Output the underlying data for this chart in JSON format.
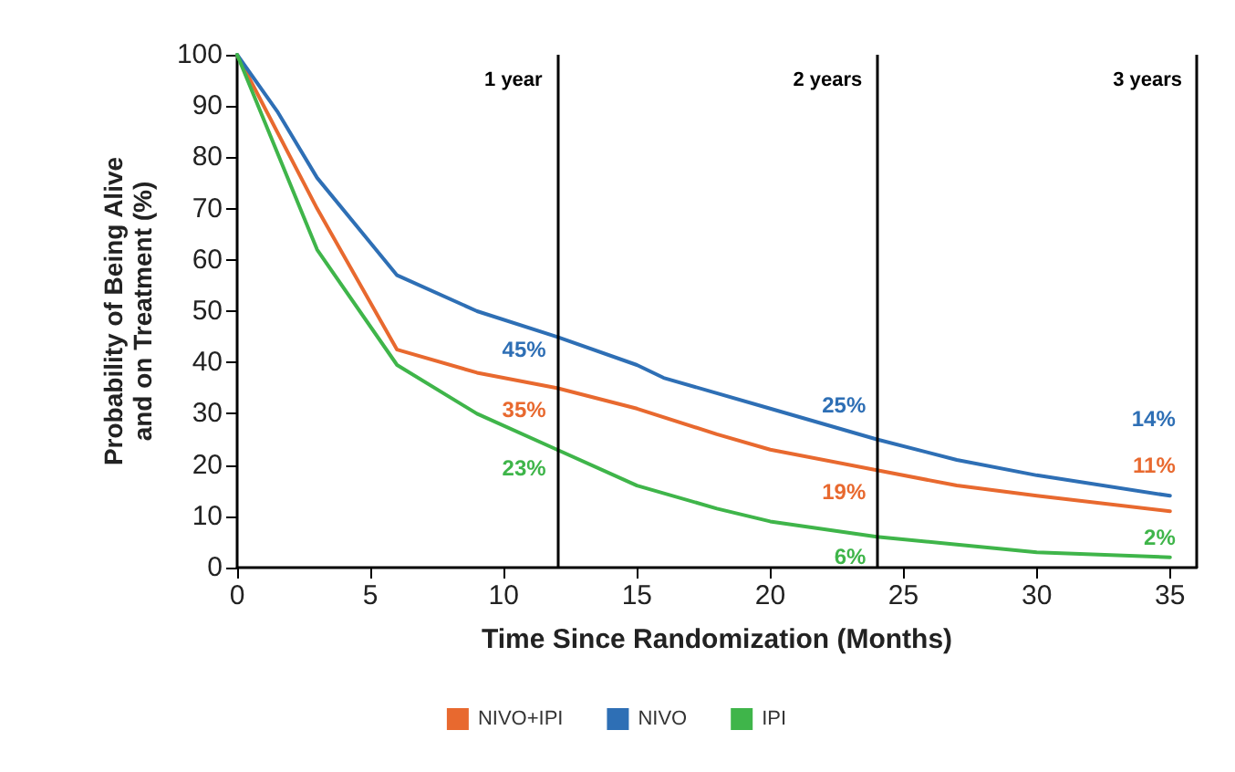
{
  "chart_data": {
    "type": "line",
    "xlabel": "Time Since Randomization (Months)",
    "ylabel": "Probability of Being Alive\nand on Treatment (%)",
    "xlim": [
      0,
      36
    ],
    "xticks": [
      0,
      5,
      10,
      15,
      20,
      25,
      30,
      35
    ],
    "ylim": [
      0,
      100
    ],
    "yticks": [
      0,
      10,
      20,
      30,
      40,
      50,
      60,
      70,
      80,
      90,
      100
    ],
    "grid": false,
    "legend": "bottom",
    "marker": "none",
    "line_style": "solid",
    "series": [
      {
        "name": "NIVO+IPI",
        "color": "#e8692f",
        "x": [
          0,
          3,
          6,
          9,
          12,
          15,
          18,
          20,
          24,
          27,
          30,
          35
        ],
        "values": [
          100,
          70,
          42.5,
          38,
          35,
          31,
          26,
          23,
          19,
          16,
          14,
          11
        ],
        "value_labels": [
          null,
          null,
          null,
          null,
          "35%",
          null,
          null,
          null,
          "19%",
          null,
          null,
          "11%"
        ]
      },
      {
        "name": "NIVO",
        "color": "#2e6fb5",
        "x": [
          0,
          1.5,
          3,
          6,
          9,
          12,
          15,
          16,
          20,
          24,
          27,
          30,
          35
        ],
        "values": [
          100,
          89,
          76,
          57,
          50,
          45,
          39.5,
          37,
          31,
          25,
          21,
          18,
          14
        ],
        "value_labels": [
          null,
          null,
          null,
          null,
          null,
          "45%",
          null,
          null,
          null,
          "25%",
          null,
          null,
          "14%"
        ]
      },
      {
        "name": "IPI",
        "color": "#3fb54a",
        "x": [
          0,
          3,
          6,
          9,
          12,
          15,
          18,
          20,
          24,
          27,
          30,
          35
        ],
        "values": [
          100,
          62,
          39.5,
          30,
          23,
          16,
          11.5,
          9,
          6,
          4.5,
          3,
          2
        ],
        "value_labels": [
          null,
          null,
          null,
          null,
          "23%",
          null,
          null,
          null,
          "6%",
          null,
          null,
          "2%"
        ]
      }
    ],
    "ref_lines": [
      {
        "axis": "x",
        "value": 12,
        "label": "1 year",
        "color": "#000000"
      },
      {
        "axis": "x",
        "value": 24,
        "label": "2 years",
        "color": "#000000"
      },
      {
        "axis": "x",
        "value": 36,
        "label": "3 years",
        "color": "#000000"
      }
    ]
  }
}
